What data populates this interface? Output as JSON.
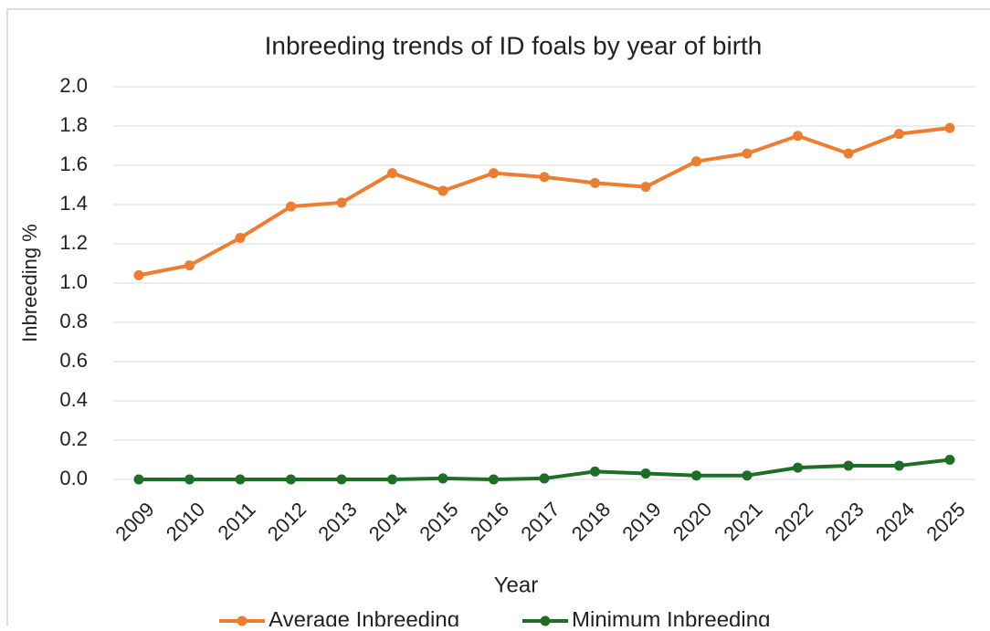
{
  "chart_data": {
    "type": "line",
    "title": "Inbreeding trends of ID foals by year of birth",
    "x_label": "Year",
    "y_label": "Inbreeding %",
    "categories": [
      "2009",
      "2010",
      "2011",
      "2012",
      "2013",
      "2014",
      "2015",
      "2016",
      "2017",
      "2018",
      "2019",
      "2020",
      "2021",
      "2022",
      "2023",
      "2024",
      "2025"
    ],
    "series": [
      {
        "name": "Average Inbreeding",
        "color": "#ed7d31",
        "values": [
          1.04,
          1.09,
          1.23,
          1.39,
          1.41,
          1.56,
          1.47,
          1.56,
          1.54,
          1.51,
          1.49,
          1.62,
          1.66,
          1.75,
          1.66,
          1.76,
          1.79
        ]
      },
      {
        "name": "Minimum Inbreeding",
        "color": "#1f6e28",
        "values": [
          0,
          0,
          0,
          0,
          0,
          0,
          0.005,
          0,
          0.005,
          0.04,
          0.03,
          0.02,
          0.02,
          0.06,
          0.07,
          0.07,
          0.1
        ]
      }
    ],
    "ylim": [
      0,
      2.0
    ],
    "yticks": [
      {
        "value": 0,
        "label": "0.0"
      },
      {
        "value": 0.2,
        "label": "0.2"
      },
      {
        "value": 0.4,
        "label": "0.4"
      },
      {
        "value": 0.6,
        "label": "0.6"
      },
      {
        "value": 0.8,
        "label": "0.8"
      },
      {
        "value": 1.0,
        "label": "1.0"
      },
      {
        "value": 1.2,
        "label": "1.2"
      },
      {
        "value": 1.4,
        "label": "1.4"
      },
      {
        "value": 1.6,
        "label": "1.6"
      },
      {
        "value": 1.8,
        "label": "1.8"
      },
      {
        "value": 2.0,
        "label": "2.0"
      }
    ],
    "grid": true,
    "legend": "bottom"
  }
}
